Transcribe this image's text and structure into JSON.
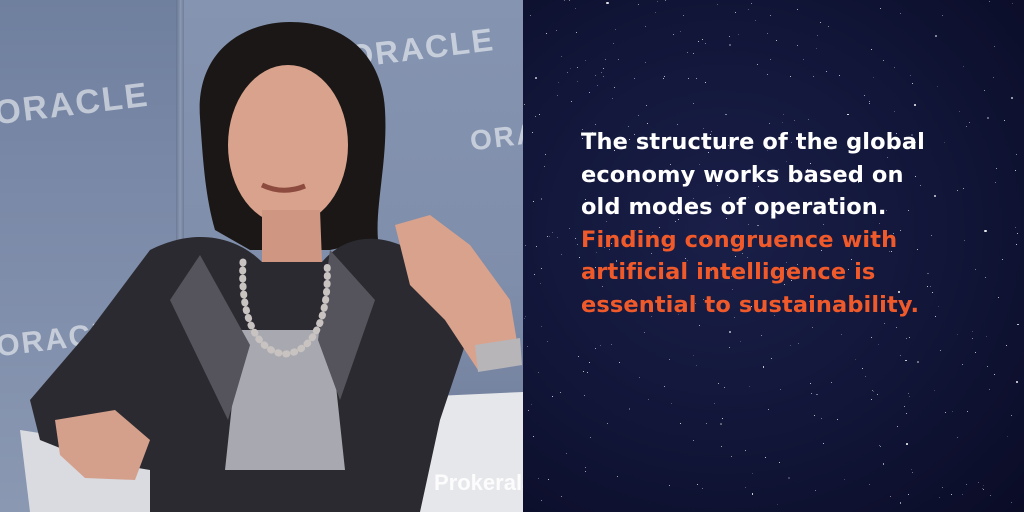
{
  "photo": {
    "watermarks": [
      "ORACLE",
      "ORACLE",
      "ORAC",
      "ORACLE"
    ],
    "credit": "Prokerala"
  },
  "quote": {
    "lines_white": [
      "The structure of the global",
      "economy works based on",
      "old modes of operation."
    ],
    "lines_accent": [
      "Finding congruence with",
      "artificial intelligence is",
      "essential to sustainability."
    ]
  },
  "colors": {
    "background": "#0e1230",
    "text": "#ffffff",
    "accent": "#f05a2a"
  }
}
